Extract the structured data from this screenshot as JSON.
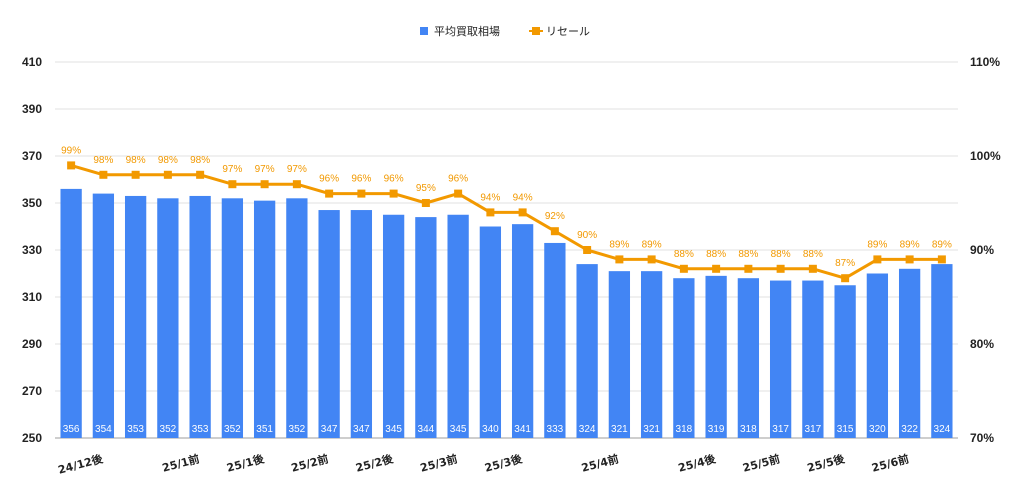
{
  "chart_data": {
    "type": "bar",
    "legend": {
      "position": "top",
      "items": [
        {
          "name": "平均買取相場",
          "color": "#4285f4",
          "marker": "square"
        },
        {
          "name": "リセール",
          "color": "#f29900",
          "marker": "line-square"
        }
      ]
    },
    "x_tick_labels": [
      {
        "index": 1,
        "label": "24/12後"
      },
      {
        "index": 4,
        "label": "25/1前"
      },
      {
        "index": 6,
        "label": "25/1後"
      },
      {
        "index": 8,
        "label": "25/2前"
      },
      {
        "index": 10,
        "label": "25/2後"
      },
      {
        "index": 12,
        "label": "25/3前"
      },
      {
        "index": 14,
        "label": "25/3後"
      },
      {
        "index": 17,
        "label": "25/4前"
      },
      {
        "index": 20,
        "label": "25/4後"
      },
      {
        "index": 22,
        "label": "25/5前"
      },
      {
        "index": 24,
        "label": "25/5後"
      },
      {
        "index": 26,
        "label": "25/6前"
      }
    ],
    "series": [
      {
        "name": "平均買取相場",
        "type": "bar",
        "axis": "left",
        "color": "#4285f4",
        "values": [
          356,
          354,
          353,
          352,
          353,
          352,
          351,
          352,
          347,
          347,
          345,
          344,
          345,
          340,
          341,
          333,
          324,
          321,
          321,
          318,
          319,
          318,
          317,
          317,
          315,
          320,
          322,
          324
        ]
      },
      {
        "name": "リセール",
        "type": "line",
        "axis": "right",
        "color": "#f29900",
        "values": [
          99,
          98,
          98,
          98,
          98,
          97,
          97,
          97,
          96,
          96,
          96,
          95,
          96,
          94,
          94,
          92,
          90,
          89,
          89,
          88,
          88,
          88,
          88,
          88,
          87,
          89,
          89,
          89
        ]
      }
    ],
    "y_left": {
      "min": 250,
      "max": 410,
      "ticks": [
        250,
        270,
        290,
        310,
        330,
        350,
        370,
        390,
        410
      ]
    },
    "y_right": {
      "min": 70,
      "max": 110,
      "ticks": [
        "70%",
        "80%",
        "90%",
        "100%",
        "110%"
      ],
      "tick_values": [
        70,
        80,
        90,
        100,
        110
      ]
    },
    "bar_labels": true,
    "line_labels_suffix": "%",
    "grid": true,
    "title": "",
    "xlabel": "",
    "ylabel": ""
  }
}
